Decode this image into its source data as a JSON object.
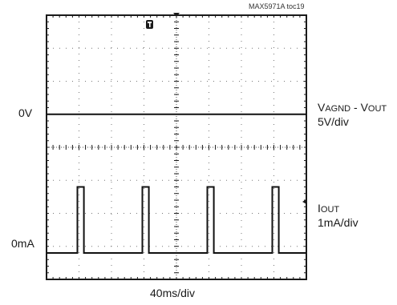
{
  "chart_data": {
    "type": "line",
    "figure_id": "MAX5971A toc19",
    "xlabel": "40ms/div",
    "x_divisions": 8,
    "y_divisions": 8,
    "grid": true,
    "series": [
      {
        "name": "VAGND - VOUT",
        "scale": "5V/div",
        "ground_label": "0V",
        "x": [
          0,
          8
        ],
        "y": [
          0,
          0
        ]
      },
      {
        "name": "IOUT",
        "scale": "1mA/div",
        "ground_label": "0mA",
        "x": [
          0,
          0.95,
          0.95,
          1.15,
          1.15,
          2.95,
          2.95,
          3.15,
          3.15,
          4.95,
          4.95,
          5.15,
          5.15,
          6.95,
          6.95,
          7.15,
          7.15,
          8
        ],
        "y": [
          0,
          0,
          2,
          2,
          0,
          0,
          2,
          2,
          0,
          0,
          2,
          2,
          0,
          0,
          2,
          2,
          0,
          0
        ]
      }
    ]
  },
  "labels": {
    "figure_id": "MAX5971A toc19",
    "ch1_ground": "0V",
    "ch1_name_main": "V",
    "ch1_name_sub1": "AGND",
    "ch1_name_mid": " - V",
    "ch1_name_sub2": "OUT",
    "ch1_scale": "5V/div",
    "ch2_ground": "0mA",
    "ch2_name_main": "I",
    "ch2_name_sub": "OUT",
    "ch2_scale": "1mA/div",
    "time_scale": "40ms/div"
  }
}
